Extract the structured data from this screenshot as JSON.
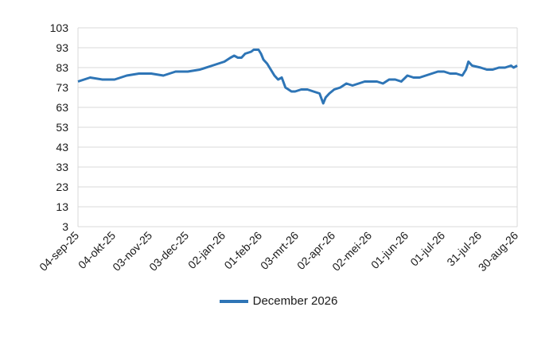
{
  "chart_data": {
    "type": "line",
    "title": "",
    "xlabel": "",
    "ylabel": "",
    "ylim": [
      3,
      103
    ],
    "y_ticks": [
      3,
      13,
      23,
      33,
      43,
      53,
      63,
      73,
      83,
      93,
      103
    ],
    "x_tick_labels": [
      "04-sep-25",
      "04-okt-25",
      "03-nov-25",
      "03-dec-25",
      "02-jan-26",
      "01-feb-26",
      "03-mrt-26",
      "02-apr-26",
      "02-mei-26",
      "01-jun-26",
      "01-jul-26",
      "31-jul-26",
      "30-aug-26"
    ],
    "grid": "horizontal",
    "legend_position": "bottom",
    "series": [
      {
        "name": "December 2026",
        "color": "#2e75b6",
        "x": [
          "2025-09-04",
          "2025-09-14",
          "2025-09-24",
          "2025-10-04",
          "2025-10-14",
          "2025-10-24",
          "2025-11-03",
          "2025-11-13",
          "2025-11-23",
          "2025-12-03",
          "2025-12-13",
          "2025-12-23",
          "2026-01-02",
          "2026-01-07",
          "2026-01-10",
          "2026-01-13",
          "2026-01-16",
          "2026-01-19",
          "2026-01-24",
          "2026-01-26",
          "2026-01-30",
          "2026-02-01",
          "2026-02-03",
          "2026-02-06",
          "2026-02-09",
          "2026-02-12",
          "2026-02-15",
          "2026-02-18",
          "2026-02-21",
          "2026-02-26",
          "2026-03-01",
          "2026-03-06",
          "2026-03-11",
          "2026-03-16",
          "2026-03-21",
          "2026-03-24",
          "2026-03-26",
          "2026-03-29",
          "2026-04-02",
          "2026-04-07",
          "2026-04-12",
          "2026-04-17",
          "2026-04-22",
          "2026-04-27",
          "2026-05-02",
          "2026-05-07",
          "2026-05-12",
          "2026-05-17",
          "2026-05-22",
          "2026-05-27",
          "2026-06-01",
          "2026-06-06",
          "2026-06-11",
          "2026-06-16",
          "2026-06-21",
          "2026-06-26",
          "2026-07-01",
          "2026-07-06",
          "2026-07-11",
          "2026-07-16",
          "2026-07-19",
          "2026-07-21",
          "2026-07-24",
          "2026-07-31",
          "2026-08-05",
          "2026-08-10",
          "2026-08-15",
          "2026-08-20",
          "2026-08-25",
          "2026-08-27",
          "2026-08-30"
        ],
        "values": [
          76,
          78,
          77,
          77,
          79,
          80,
          80,
          79,
          81,
          81,
          82,
          84,
          86,
          88,
          89,
          88,
          88,
          90,
          91,
          92,
          92,
          90,
          87,
          85,
          82,
          79,
          77,
          78,
          73,
          71,
          71,
          72,
          72,
          71,
          70,
          65,
          68,
          70,
          72,
          73,
          75,
          74,
          75,
          76,
          76,
          76,
          75,
          77,
          77,
          76,
          79,
          78,
          78,
          79,
          80,
          81,
          81,
          80,
          80,
          79,
          82,
          86,
          84,
          83,
          82,
          82,
          83,
          83,
          84,
          83,
          84
        ]
      }
    ]
  }
}
